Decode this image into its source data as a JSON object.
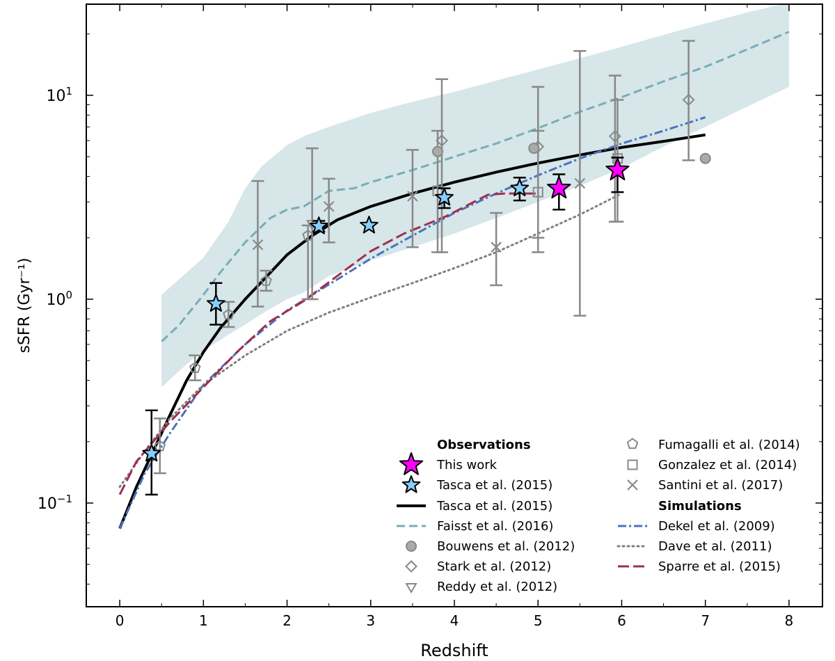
{
  "chart_data": {
    "type": "scatter",
    "xlabel": "Redshift",
    "ylabel": "sSFR (Gyr⁻¹)",
    "xlim": [
      -0.4,
      8.4
    ],
    "ylim": [
      0.031,
      28
    ],
    "yscale": "log",
    "xticks": [
      0,
      1,
      2,
      3,
      4,
      5,
      6,
      7,
      8
    ],
    "yticks": [
      {
        "value": 0.1,
        "base": "10",
        "exp": "−1"
      },
      {
        "value": 1,
        "base": "10",
        "exp": "0"
      },
      {
        "value": 10,
        "base": "10",
        "exp": "1"
      }
    ],
    "legend_position": "lower-right",
    "legend": {
      "observations_heading": "Observations",
      "simulations_heading": "Simulations",
      "this_work": "This work",
      "tasca_points": "Tasca et al. (2015)",
      "tasca_curve": "Tasca et al. (2015)",
      "faisst": "Faisst et al. (2016)",
      "bouwens": "Bouwens et al. (2012)",
      "stark": "Stark et al. (2012)",
      "reddy": "Reddy et al. (2012)",
      "fumagalli": "Fumagalli et al. (2014)",
      "gonzalez": "Gonzalez et al. (2014)",
      "santini": "Santini et al. (2017)",
      "dekel": "Dekel et al. (2009)",
      "dave": "Dave et al. (2011)",
      "sparre": "Sparre et al. (2015)"
    },
    "colors": {
      "this_work": "#ff00ff",
      "tasca": "#87cefa",
      "faisst": "#78adb8",
      "band": "#d6e6e9",
      "grey": "#888888",
      "dekel": "#4a72bd",
      "dave": "#7f7f7f",
      "sparre": "#9e2f4c"
    },
    "faisst_band": {
      "x": [
        0.5,
        0.8,
        1.0,
        1.3,
        1.5,
        1.7,
        2.0,
        2.2,
        2.5,
        3.0,
        3.5,
        4.0,
        4.5,
        5.0,
        5.5,
        6.0,
        6.5,
        7.0,
        7.5,
        8.0
      ],
      "lower": [
        0.37,
        0.48,
        0.56,
        0.67,
        0.75,
        0.85,
        1.0,
        1.08,
        1.3,
        1.55,
        1.8,
        2.1,
        2.5,
        3.0,
        3.6,
        4.4,
        5.6,
        7.0,
        8.8,
        11.0
      ],
      "upper": [
        1.05,
        1.35,
        1.6,
        2.4,
        3.5,
        4.5,
        5.7,
        6.3,
        7.0,
        8.2,
        9.3,
        10.4,
        11.8,
        13.4,
        15.2,
        17.3,
        19.8,
        22.5,
        25.5,
        28.5
      ]
    },
    "series": [
      {
        "key": "faisst",
        "style": "dashed",
        "x": [
          0.5,
          0.7,
          1.0,
          1.2,
          1.5,
          1.8,
          2.0,
          2.2,
          2.5,
          2.8,
          3.0,
          3.5,
          4.0,
          4.5,
          5.0,
          5.5,
          6.0,
          6.5,
          7.0,
          7.5,
          8.0
        ],
        "y": [
          0.62,
          0.74,
          1.05,
          1.35,
          1.9,
          2.5,
          2.75,
          2.85,
          3.4,
          3.5,
          3.75,
          4.3,
          5.0,
          5.8,
          6.9,
          8.3,
          9.8,
          11.7,
          13.8,
          16.8,
          20.5
        ]
      },
      {
        "key": "tasca_curve",
        "style": "solid",
        "x": [
          0.0,
          0.2,
          0.4,
          0.6,
          0.8,
          1.0,
          1.2,
          1.5,
          1.8,
          2.0,
          2.3,
          2.6,
          3.0,
          3.5,
          4.0,
          4.5,
          5.0,
          5.5,
          6.0,
          6.5,
          7.0
        ],
        "y": [
          0.075,
          0.12,
          0.18,
          0.27,
          0.4,
          0.55,
          0.72,
          1.0,
          1.35,
          1.65,
          2.05,
          2.45,
          2.85,
          3.3,
          3.75,
          4.2,
          4.65,
          5.1,
          5.55,
          5.95,
          6.4
        ]
      },
      {
        "key": "dekel",
        "style": "dashdot",
        "x": [
          0.0,
          0.3,
          0.6,
          1.0,
          1.5,
          2.0,
          2.5,
          3.0,
          3.5,
          4.0,
          4.5,
          5.0,
          5.5,
          6.0,
          6.5,
          7.0
        ],
        "y": [
          0.075,
          0.14,
          0.22,
          0.38,
          0.6,
          0.88,
          1.18,
          1.58,
          2.05,
          2.65,
          3.3,
          4.05,
          4.9,
          5.8,
          6.7,
          7.8
        ]
      },
      {
        "key": "dave",
        "style": "dotted",
        "x": [
          0.0,
          0.3,
          0.6,
          1.0,
          1.5,
          2.0,
          2.5,
          3.0,
          3.5,
          4.0,
          4.5,
          5.0,
          5.5,
          6.0
        ],
        "y": [
          0.12,
          0.18,
          0.26,
          0.38,
          0.53,
          0.7,
          0.86,
          1.02,
          1.2,
          1.42,
          1.7,
          2.1,
          2.6,
          3.3
        ]
      },
      {
        "key": "sparre",
        "style": "longdash",
        "x": [
          0.0,
          0.2,
          0.4,
          0.6,
          1.0,
          1.4,
          1.8,
          2.2,
          2.6,
          3.0,
          3.4,
          3.9,
          4.2,
          4.4,
          4.6,
          5.0
        ],
        "y": [
          0.11,
          0.16,
          0.2,
          0.25,
          0.37,
          0.55,
          0.78,
          0.98,
          1.3,
          1.72,
          2.1,
          2.55,
          2.95,
          3.25,
          3.3,
          3.3
        ]
      }
    ],
    "points": {
      "this_work": [
        {
          "x": 5.25,
          "y": 3.5,
          "lo": 2.75,
          "hi": 4.1
        },
        {
          "x": 5.95,
          "y": 4.3,
          "lo": 3.35,
          "hi": 4.95
        }
      ],
      "tasca": [
        {
          "x": 0.38,
          "y": 0.175,
          "lo": 0.11,
          "hi": 0.285
        },
        {
          "x": 1.15,
          "y": 0.95,
          "lo": 0.75,
          "hi": 1.2
        },
        {
          "x": 2.38,
          "y": 2.28,
          "lo": 2.15,
          "hi": 2.42
        },
        {
          "x": 2.98,
          "y": 2.3
        },
        {
          "x": 3.88,
          "y": 3.15,
          "lo": 2.8,
          "hi": 3.5
        },
        {
          "x": 4.78,
          "y": 3.5,
          "lo": 3.05,
          "hi": 3.95
        }
      ],
      "bouwens": [
        {
          "x": 3.8,
          "y": 5.3
        },
        {
          "x": 4.95,
          "y": 5.5
        },
        {
          "x": 7.0,
          "y": 4.9
        }
      ],
      "stark": [
        {
          "x": 3.85,
          "y": 6.0,
          "lo": 1.7,
          "hi": 12.0
        },
        {
          "x": 5.0,
          "y": 5.6,
          "lo": 1.7,
          "hi": 11.0
        },
        {
          "x": 5.92,
          "y": 6.3,
          "lo": 2.4,
          "hi": 12.5
        },
        {
          "x": 6.8,
          "y": 9.5,
          "lo": 4.8,
          "hi": 18.5
        }
      ],
      "reddy": [
        {
          "x": 2.3,
          "y": 2.35,
          "lo": 1.0,
          "hi": 5.5
        }
      ],
      "fumagalli": [
        {
          "x": 0.48,
          "y": 0.19,
          "lo": 0.14,
          "hi": 0.26
        },
        {
          "x": 0.9,
          "y": 0.46,
          "lo": 0.4,
          "hi": 0.53
        },
        {
          "x": 1.3,
          "y": 0.84,
          "lo": 0.73,
          "hi": 0.97
        },
        {
          "x": 1.75,
          "y": 1.23,
          "lo": 1.1,
          "hi": 1.38
        },
        {
          "x": 2.25,
          "y": 2.05,
          "lo": 1.0,
          "hi": 2.3
        }
      ],
      "gonzalez": [
        {
          "x": 3.8,
          "y": 3.4,
          "lo": 1.7,
          "hi": 6.7
        },
        {
          "x": 5.0,
          "y": 3.35,
          "lo": 2.0,
          "hi": 6.7
        },
        {
          "x": 5.95,
          "y": 4.9,
          "lo": 2.4,
          "hi": 9.5
        }
      ],
      "santini": [
        {
          "x": 1.65,
          "y": 1.85,
          "lo": 0.92,
          "hi": 3.8
        },
        {
          "x": 2.5,
          "y": 2.85,
          "lo": 1.9,
          "hi": 3.9
        },
        {
          "x": 3.5,
          "y": 3.2,
          "lo": 1.8,
          "hi": 5.4
        },
        {
          "x": 4.5,
          "y": 1.8,
          "lo": 1.17,
          "hi": 2.65
        },
        {
          "x": 5.5,
          "y": 3.7,
          "lo": 0.83,
          "hi": 16.5
        }
      ]
    }
  }
}
